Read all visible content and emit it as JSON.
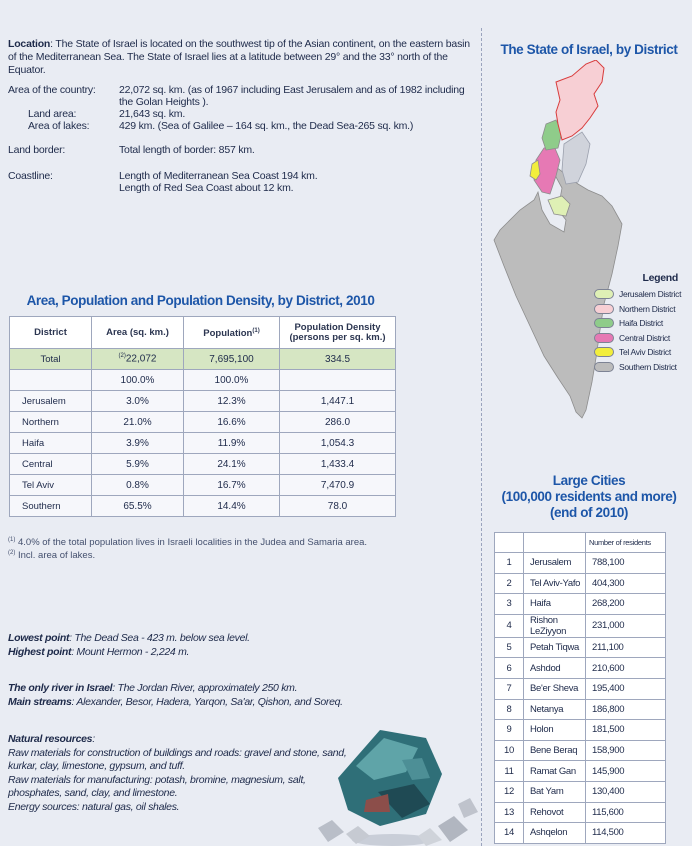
{
  "location": {
    "label": "Location",
    "text": ": The State of Israel is located on the southwest tip of the Asian continent, on the eastern basin of the Mediterranean Sea. The State of Israel lies at a latitude between 29° and the 33° north of the Equator."
  },
  "facts": [
    {
      "label": "Area of the country:",
      "value": "22,072 sq. km. (as of 1967 including East Jerusalem and as of 1982 including the Golan Heights ).",
      "indent": false,
      "gap": 0
    },
    {
      "label": "Land area:",
      "value": "21,643 sq. km.",
      "indent": true,
      "gap": 0
    },
    {
      "label": "Area of lakes:",
      "value": "429 km. (Sea of Galilee – 164 sq. km., the Dead Sea-265 sq. km.)",
      "indent": true,
      "gap": 0
    },
    {
      "label": "Land border:",
      "value": "Total length of border: 857 km.",
      "indent": false,
      "gap": 12
    },
    {
      "label": "Coastline:",
      "value": "Length of Mediterranean Sea Coast 194 km.",
      "indent": false,
      "gap": 14
    },
    {
      "label": "",
      "value": "Length of Red Sea Coast about 12 km.",
      "indent": false,
      "gap": 0
    }
  ],
  "district_table": {
    "title": "Area, Population and Population Density, by District, 2010",
    "headers": {
      "district": "District",
      "area": "Area (sq. km.)",
      "population": "Population",
      "population_sup": "(1)",
      "density": "Population Density",
      "density_sub": "(persons per sq. km.)"
    },
    "total": {
      "district": "Total",
      "area_sup": "(2)",
      "area": "22,072",
      "population": "7,695,100",
      "density": "334.5"
    },
    "percent": {
      "area": "100.0%",
      "population": "100.0%"
    },
    "rows": [
      {
        "district": "Jerusalem",
        "area": "3.0%",
        "population": "12.3%",
        "density": "1,447.1"
      },
      {
        "district": "Northern",
        "area": "21.0%",
        "population": "16.6%",
        "density": "286.0"
      },
      {
        "district": "Haifa",
        "area": "3.9%",
        "population": "11.9%",
        "density": "1,054.3"
      },
      {
        "district": "Central",
        "area": "5.9%",
        "population": "24.1%",
        "density": "1,433.4"
      },
      {
        "district": "Tel Aviv",
        "area": "0.8%",
        "population": "16.7%",
        "density": "7,470.9"
      },
      {
        "district": "Southern",
        "area": "65.5%",
        "population": "14.4%",
        "density": "78.0"
      }
    ],
    "notes": [
      {
        "mark": "(1)",
        "text": " 4.0% of the total population lives in Israeli localities in the Judea and Samaria area."
      },
      {
        "mark": "(2)",
        "text": " Incl. area of lakes."
      }
    ]
  },
  "geography": {
    "lowest_label": "Lowest point",
    "lowest_text": ": The Dead Sea - 423 m. below sea level.",
    "highest_label": "Highest point",
    "highest_text": ": Mount Hermon - 2,224 m.",
    "river_label": "The only river in Israel",
    "river_text": ": The Jordan River, approximately 250 km.",
    "streams_label": "Main streams",
    "streams_text": ": Alexander, Besor, Hadera, Yarqon, Sa'ar, Qishon, and Soreq."
  },
  "resources": {
    "label": "Natural resources",
    "colon": ":",
    "lines": [
      "Raw materials for construction of buildings and roads: gravel and stone, sand, kurkar, clay, limestone, gypsum, and tuff.",
      "Raw materials for manufacturing: potash, bromine, magnesium, salt, phosphates, sand, clay, and limestone.",
      "Energy sources: natural gas, oil shales."
    ]
  },
  "map": {
    "title": "The State of Israel, by District",
    "legend_title": "Legend",
    "legend": [
      {
        "label": "Jerusalem District",
        "color": "#dff0b5"
      },
      {
        "label": "Northern District",
        "color": "#f7cfd4"
      },
      {
        "label": "Haifa District",
        "color": "#8fcc8a"
      },
      {
        "label": "Central District",
        "color": "#e679b4"
      },
      {
        "label": "Tel Aviv District",
        "color": "#f2ee3c"
      },
      {
        "label": "Southern District",
        "color": "#bcbcbc"
      }
    ]
  },
  "cities": {
    "title_lines": [
      "Large Cities",
      "(100,000 residents and more)",
      "(end of 2010)"
    ],
    "header": "Number of residents",
    "rows": [
      {
        "rank": "1",
        "name": "Jerusalem",
        "pop": "788,100"
      },
      {
        "rank": "2",
        "name": "Tel Aviv-Yafo",
        "pop": "404,300"
      },
      {
        "rank": "3",
        "name": "Haifa",
        "pop": "268,200"
      },
      {
        "rank": "4",
        "name": "Rishon LeZiyyon",
        "pop": "231,000"
      },
      {
        "rank": "5",
        "name": "Petah Tiqwa",
        "pop": "211,100"
      },
      {
        "rank": "6",
        "name": "Ashdod",
        "pop": "210,600"
      },
      {
        "rank": "7",
        "name": "Be'er Sheva",
        "pop": "195,400"
      },
      {
        "rank": "8",
        "name": "Netanya",
        "pop": "186,800"
      },
      {
        "rank": "9",
        "name": "Holon",
        "pop": "181,500"
      },
      {
        "rank": "10",
        "name": "Bene Beraq",
        "pop": "158,900"
      },
      {
        "rank": "11",
        "name": "Ramat Gan",
        "pop": "145,900"
      },
      {
        "rank": "12",
        "name": "Bat Yam",
        "pop": "130,400"
      },
      {
        "rank": "13",
        "name": "Rehovot",
        "pop": "115,600"
      },
      {
        "rank": "14",
        "name": "Ashqelon",
        "pop": "114,500"
      }
    ]
  }
}
